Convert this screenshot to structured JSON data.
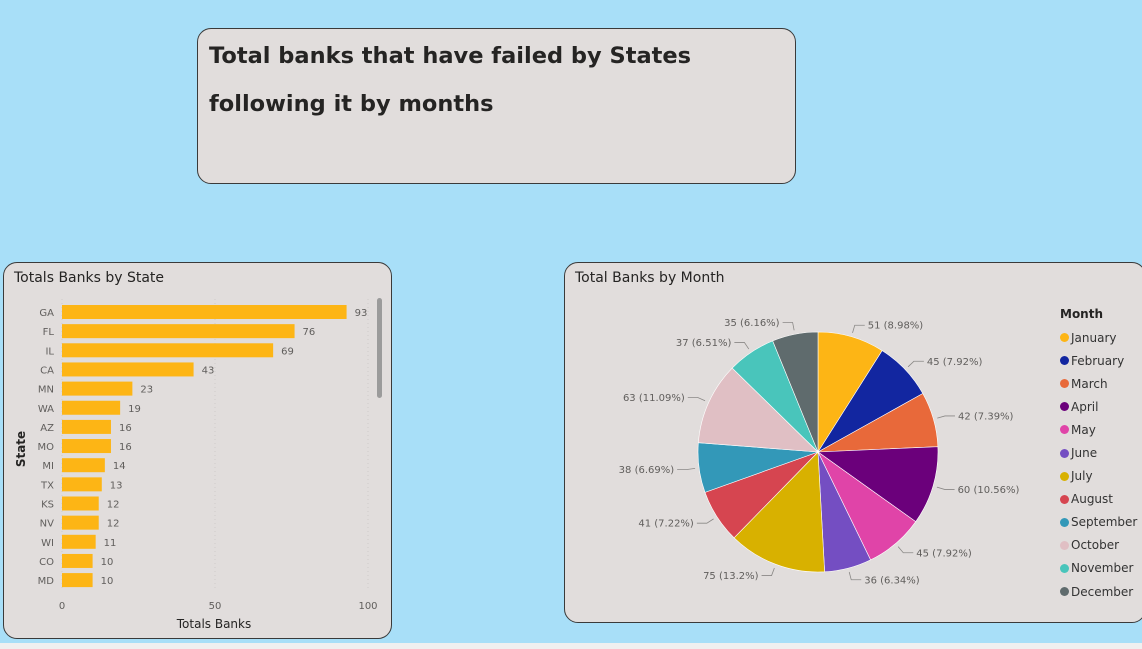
{
  "title_card": {
    "line1": "Total banks that have failed by States",
    "line2": "following it by months"
  },
  "colors": {
    "background": "#a8dff8",
    "panel": "#e1dddc",
    "bar": "#fdb515"
  },
  "chart_data": [
    {
      "type": "bar",
      "orientation": "horizontal",
      "title": "Totals Banks by State",
      "xlabel": "Totals Banks",
      "ylabel": "State",
      "categories": [
        "GA",
        "FL",
        "IL",
        "CA",
        "MN",
        "WA",
        "AZ",
        "MO",
        "MI",
        "TX",
        "KS",
        "NV",
        "WI",
        "CO",
        "MD"
      ],
      "values": [
        93,
        76,
        69,
        43,
        23,
        19,
        16,
        16,
        14,
        13,
        12,
        12,
        11,
        10,
        10
      ],
      "xlim": [
        0,
        100
      ],
      "xticks": [
        "0",
        "50",
        "100"
      ],
      "grid": true,
      "data_labels": true
    },
    {
      "type": "pie",
      "title": "Total Banks by Month",
      "legend_title": "Month",
      "legend_position": "right",
      "labels": [
        "January",
        "February",
        "March",
        "April",
        "May",
        "June",
        "July",
        "August",
        "September",
        "October",
        "November",
        "December"
      ],
      "values": [
        51,
        45,
        42,
        60,
        45,
        36,
        75,
        41,
        38,
        63,
        37,
        35
      ],
      "data_labels": [
        "51 (8.98%)",
        "45 (7.92%)",
        "42 (7.39%)",
        "60 (10.56%)",
        "45 (7.92%)",
        "36 (6.34%)",
        "75 (13.2%)",
        "41 (7.22%)",
        "38 (6.69%)",
        "63 (11.09%)",
        "37 (6.51%)",
        "35 (6.16%)"
      ],
      "colors": [
        "#fdb515",
        "#1226a0",
        "#e8693a",
        "#6b007b",
        "#e044a8",
        "#744ec2",
        "#d8b100",
        "#d64550",
        "#3398b8",
        "#e0bfc4",
        "#49c5bb",
        "#5f6b6d"
      ]
    }
  ]
}
